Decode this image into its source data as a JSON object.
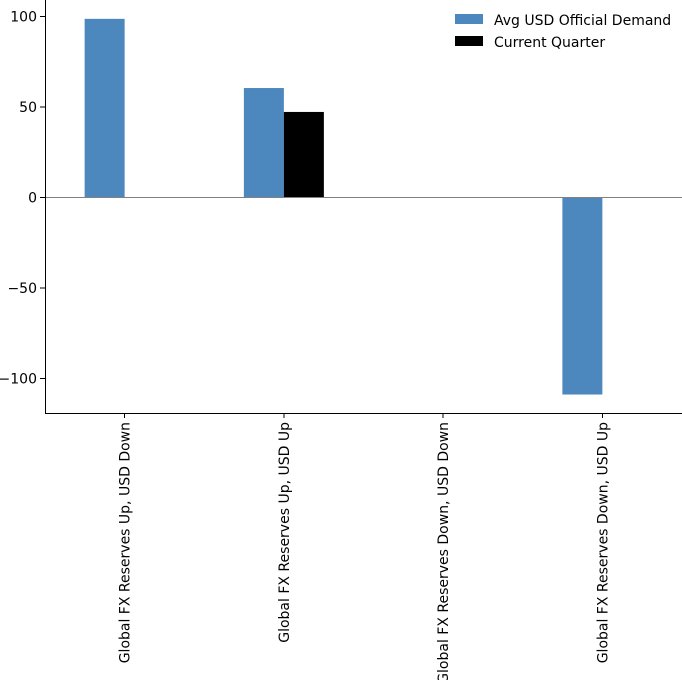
{
  "chart_data": {
    "type": "bar",
    "categories": [
      "Global FX Reserves Up, USD Down",
      "Global FX Reserves Up, USD Up",
      "Global FX Reserves Down, USD Down",
      "Global FX Reserves Down, USD Up"
    ],
    "series": [
      {
        "name": "Avg USD Official Demand",
        "color": "#4c87bd",
        "values": [
          98.6,
          60.4,
          null,
          -108.8
        ]
      },
      {
        "name": "Current Quarter",
        "color": "#000000",
        "values": [
          null,
          47.2,
          null,
          null
        ]
      }
    ],
    "ylim": [
      -119,
      109
    ],
    "yticks": [
      100,
      50,
      0,
      -50,
      -100
    ],
    "ytick_labels": [
      "100",
      "50",
      "0",
      "−50",
      "−100"
    ],
    "legend_position": "top-right",
    "grid": false
  }
}
